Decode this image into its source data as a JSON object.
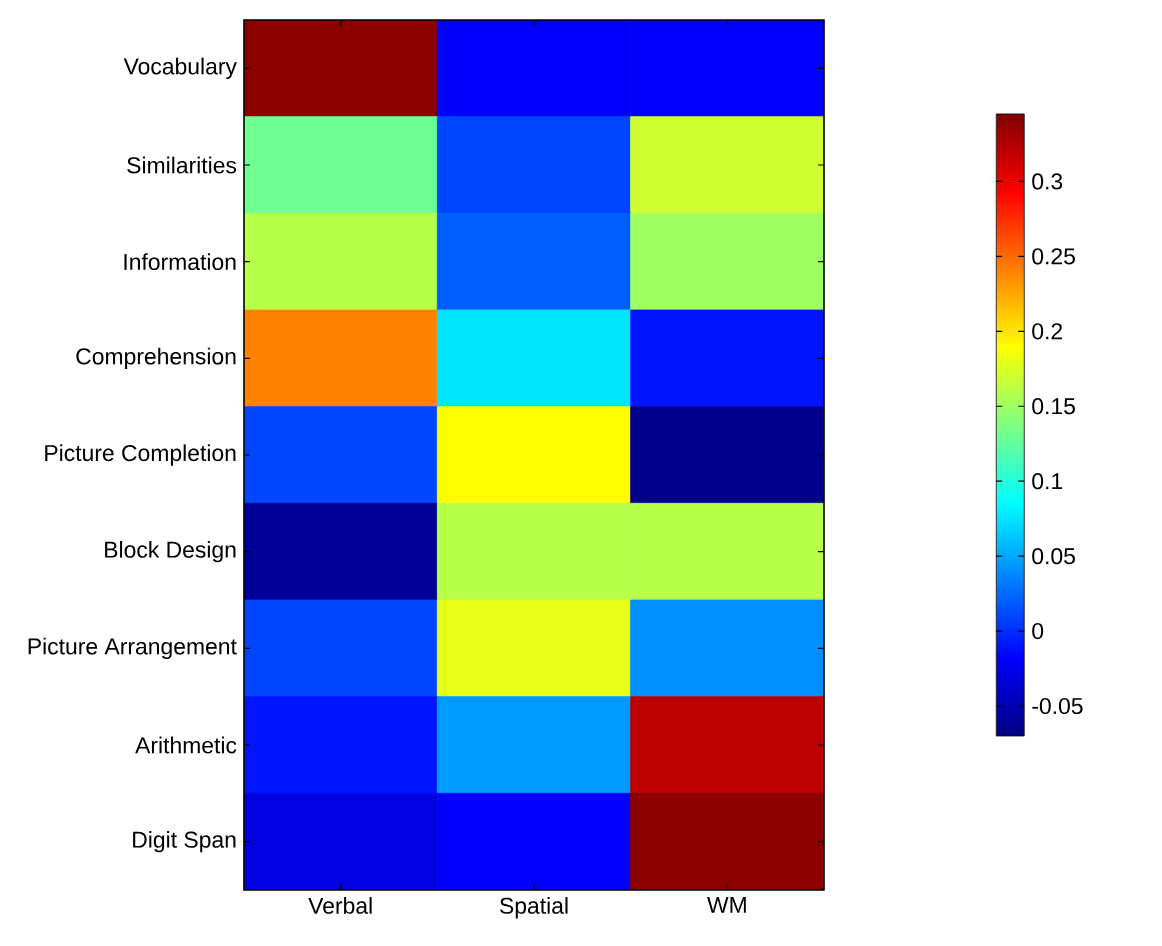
{
  "chart_data": {
    "type": "heatmap",
    "categories": [
      "Verbal",
      "Spatial",
      "WM"
    ],
    "y_categories": [
      "Vocabulary",
      "Similarities",
      "Information",
      "Comprehension",
      "Picture Completion",
      "Block Design",
      "Picture Arrangement",
      "Arithmetic",
      "Digit Span"
    ],
    "cells": [
      [
        0.34,
        -0.02,
        -0.02
      ],
      [
        0.13,
        0.01,
        0.17
      ],
      [
        0.16,
        0.02,
        0.15
      ],
      [
        0.24,
        0.075,
        -0.01
      ],
      [
        0.01,
        0.19,
        -0.065
      ],
      [
        -0.06,
        0.16,
        0.16
      ],
      [
        0.01,
        0.18,
        0.04
      ],
      [
        -0.01,
        0.045,
        0.32
      ],
      [
        -0.03,
        -0.02,
        0.34
      ]
    ],
    "clim": [
      -0.07,
      0.345
    ],
    "cticks": [
      -0.05,
      0,
      0.05,
      0.1,
      0.15,
      0.2,
      0.25,
      0.3
    ]
  }
}
